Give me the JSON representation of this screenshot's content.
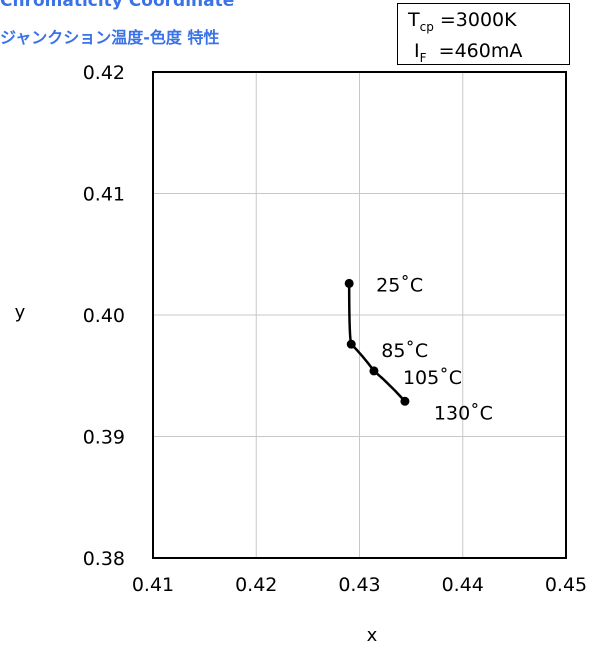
{
  "chart_data": {
    "type": "line",
    "title": "Chromaticity Coordinate",
    "subtitle": "ジャンクション温度-色度 特性",
    "xlabel": "x",
    "ylabel": "y",
    "xlim": [
      0.41,
      0.45
    ],
    "ylim": [
      0.38,
      0.42
    ],
    "x_ticks": [
      "0.41",
      "0.42",
      "0.43",
      "0.44",
      "0.45"
    ],
    "y_ticks": [
      "0.38",
      "0.39",
      "0.40",
      "0.41",
      "0.42"
    ],
    "grid": true,
    "conditions": {
      "tcp_symbol": "T",
      "tcp_sub": "cp",
      "tcp_value": "=3000K",
      "if_symbol": "I",
      "if_sub": "F",
      "if_value": "=460mA"
    },
    "series": [
      {
        "points": [
          {
            "x": 0.429,
            "y": 0.4026,
            "label": "25˚C"
          },
          {
            "x": 0.4292,
            "y": 0.3976,
            "label": "85˚C"
          },
          {
            "x": 0.4314,
            "y": 0.3954,
            "label": "105˚C"
          },
          {
            "x": 0.4344,
            "y": 0.3929,
            "label": "130˚C"
          }
        ]
      }
    ]
  }
}
